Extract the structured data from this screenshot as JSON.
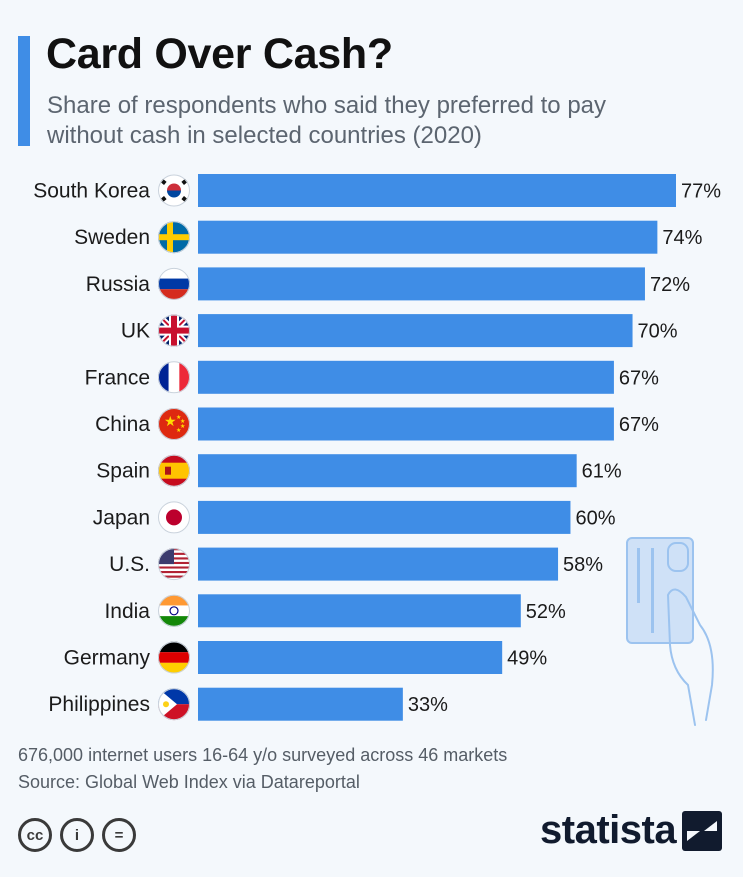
{
  "header": {
    "title": "Card Over Cash?",
    "subtitle": "Share of respondents who said they preferred to pay without cash in selected countries (2020)"
  },
  "chart_data": {
    "type": "bar",
    "orientation": "horizontal",
    "categories": [
      "South Korea",
      "Sweden",
      "Russia",
      "UK",
      "France",
      "China",
      "Spain",
      "Japan",
      "U.S.",
      "India",
      "Germany",
      "Philippines"
    ],
    "values": [
      77,
      74,
      72,
      70,
      67,
      67,
      61,
      60,
      58,
      52,
      49,
      33
    ],
    "value_labels": [
      "77%",
      "74%",
      "72%",
      "70%",
      "67%",
      "67%",
      "61%",
      "60%",
      "58%",
      "52%",
      "49%",
      "33%"
    ],
    "flag_icons": [
      "south-korea-flag-icon",
      "sweden-flag-icon",
      "russia-flag-icon",
      "uk-flag-icon",
      "france-flag-icon",
      "china-flag-icon",
      "spain-flag-icon",
      "japan-flag-icon",
      "us-flag-icon",
      "india-flag-icon",
      "germany-flag-icon",
      "philippines-flag-icon"
    ],
    "bar_color": "#3f8de6",
    "xlim": [
      0,
      77
    ],
    "grid": false,
    "legend": "none"
  },
  "footer": {
    "note": "676,000 internet users 16-64 y/o surveyed across 46 markets",
    "source": "Source: Global Web Index via Datareportal",
    "license_icons": [
      "cc-icon",
      "attribution-icon",
      "no-derivatives-icon"
    ],
    "license_glyphs": [
      "cc",
      "i",
      "="
    ],
    "brand": "statista"
  },
  "colors": {
    "accent": "#3f8de6",
    "background": "#f4f8fc",
    "brand": "#111b2e"
  },
  "decoration": "card-in-hand-icon"
}
